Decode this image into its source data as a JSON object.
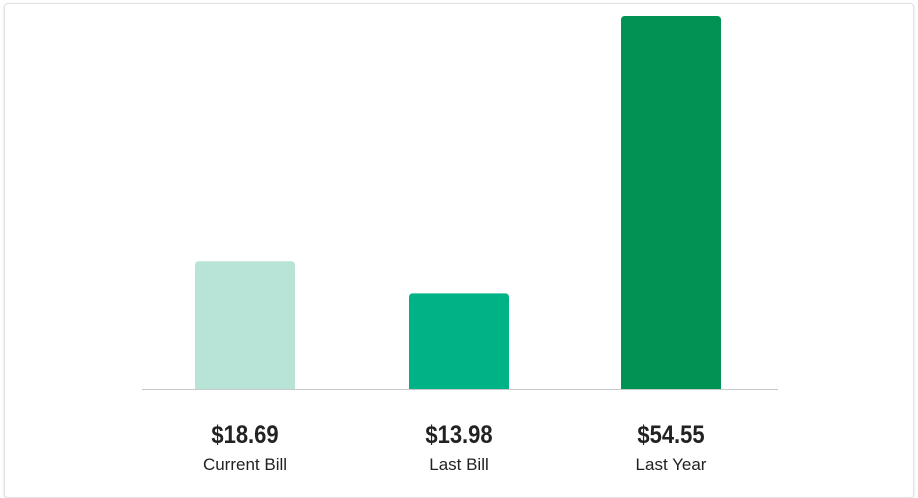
{
  "chart_data": {
    "type": "bar",
    "categories": [
      "Current Bill",
      "Last Bill",
      "Last Year"
    ],
    "values": [
      18.69,
      13.98,
      54.55
    ],
    "value_labels": [
      "$18.69",
      "$13.98",
      "$54.55"
    ],
    "colors": [
      "#b7e4d6",
      "#00b386",
      "#009353"
    ]
  }
}
